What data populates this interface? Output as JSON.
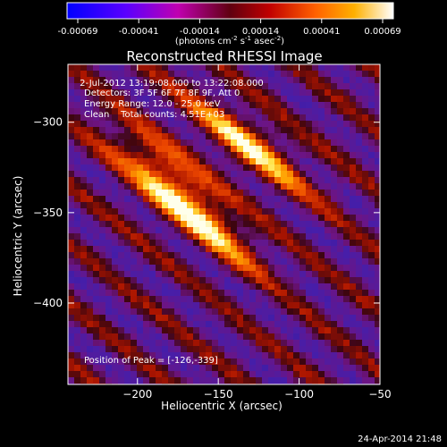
{
  "chart_data": {
    "type": "heatmap",
    "title": "Reconstructed RHESSI Image",
    "xlabel": "Heliocentric X (arcsec)",
    "ylabel": "Heliocentric Y (arcsec)",
    "xlim": [
      -243,
      -50
    ],
    "ylim": [
      -445,
      -268
    ],
    "xticks": [
      -200,
      -150,
      -100,
      -50
    ],
    "yticks": [
      -300,
      -350,
      -400
    ],
    "colorbar": {
      "ticks": [
        "-0.00069",
        "-0.00041",
        "-0.00014",
        "0.00014",
        "0.00041",
        "0.00069"
      ],
      "vmin": -0.00069,
      "vmax": 0.00069,
      "unit_prefix": "(photons cm",
      "unit_exp1": "-2",
      "unit_mid": " s",
      "unit_exp2": "-1",
      "unit_mid2": " asec",
      "unit_exp3": "-2",
      "unit_suffix": ")"
    },
    "info_lines": [
      " 2-Jul-2012 13:19:08.000 to 13:22:08.000",
      "Detectors: 3F 5F 6F 7F 8F 9F, Att 0",
      "Energy Range: 12.0 - 25.0 keV",
      "Clean    Total counts: 4.51E+03"
    ],
    "peak_label": "Position of Peak = [-126,-339]",
    "peak": [
      -126,
      -339
    ],
    "sources": [
      {
        "x": -163,
        "y": -352,
        "intensity": 1.0
      },
      {
        "x": -132,
        "y": -312,
        "intensity": 0.9
      },
      {
        "x": -185,
        "y": -325,
        "intensity": 0.75
      }
    ]
  },
  "footer": {
    "timestamp": "24-Apr-2014 21:48"
  }
}
